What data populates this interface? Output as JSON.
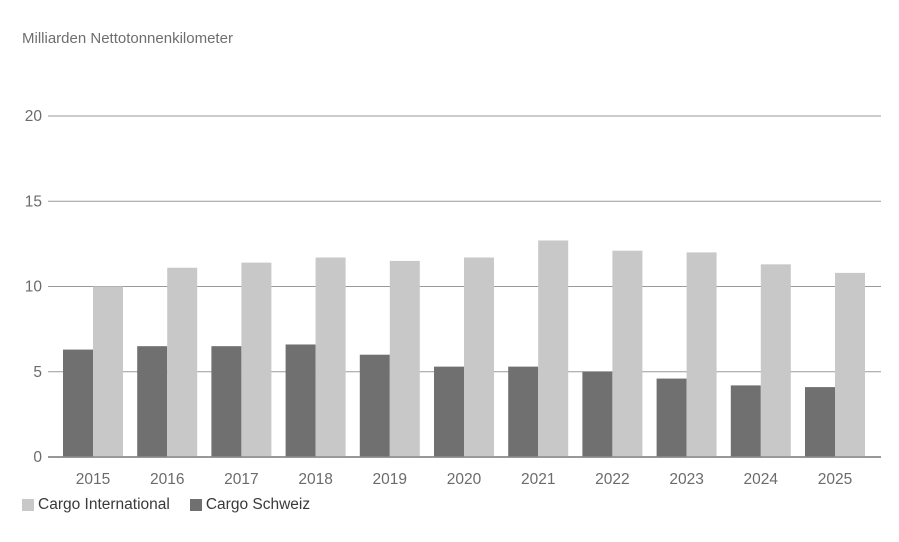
{
  "chart_data": {
    "type": "bar",
    "title": "Milliarden Nettotonnenkilometer",
    "categories": [
      "2015",
      "2016",
      "2017",
      "2018",
      "2019",
      "2020",
      "2021",
      "2022",
      "2023",
      "2024",
      "2025"
    ],
    "series": [
      {
        "name": "Cargo Schweiz",
        "color": "#6f706f",
        "values": [
          6.3,
          6.5,
          6.5,
          6.6,
          6.0,
          5.3,
          5.3,
          5.0,
          4.6,
          4.2,
          4.1
        ]
      },
      {
        "name": "Cargo International",
        "color": "#c8c8c8",
        "values": [
          10.0,
          11.1,
          11.4,
          11.7,
          11.5,
          11.7,
          12.7,
          12.1,
          12.0,
          11.3,
          10.8
        ]
      }
    ],
    "yticks": [
      "0",
      "5",
      "10",
      "15",
      "20"
    ],
    "ylim": [
      0,
      20
    ],
    "grid": true,
    "legend_position": "bottom-left",
    "legend": [
      {
        "label": "Cargo International",
        "color": "#c8c8c8"
      },
      {
        "label": "Cargo Schweiz",
        "color": "#6f706f"
      }
    ]
  }
}
